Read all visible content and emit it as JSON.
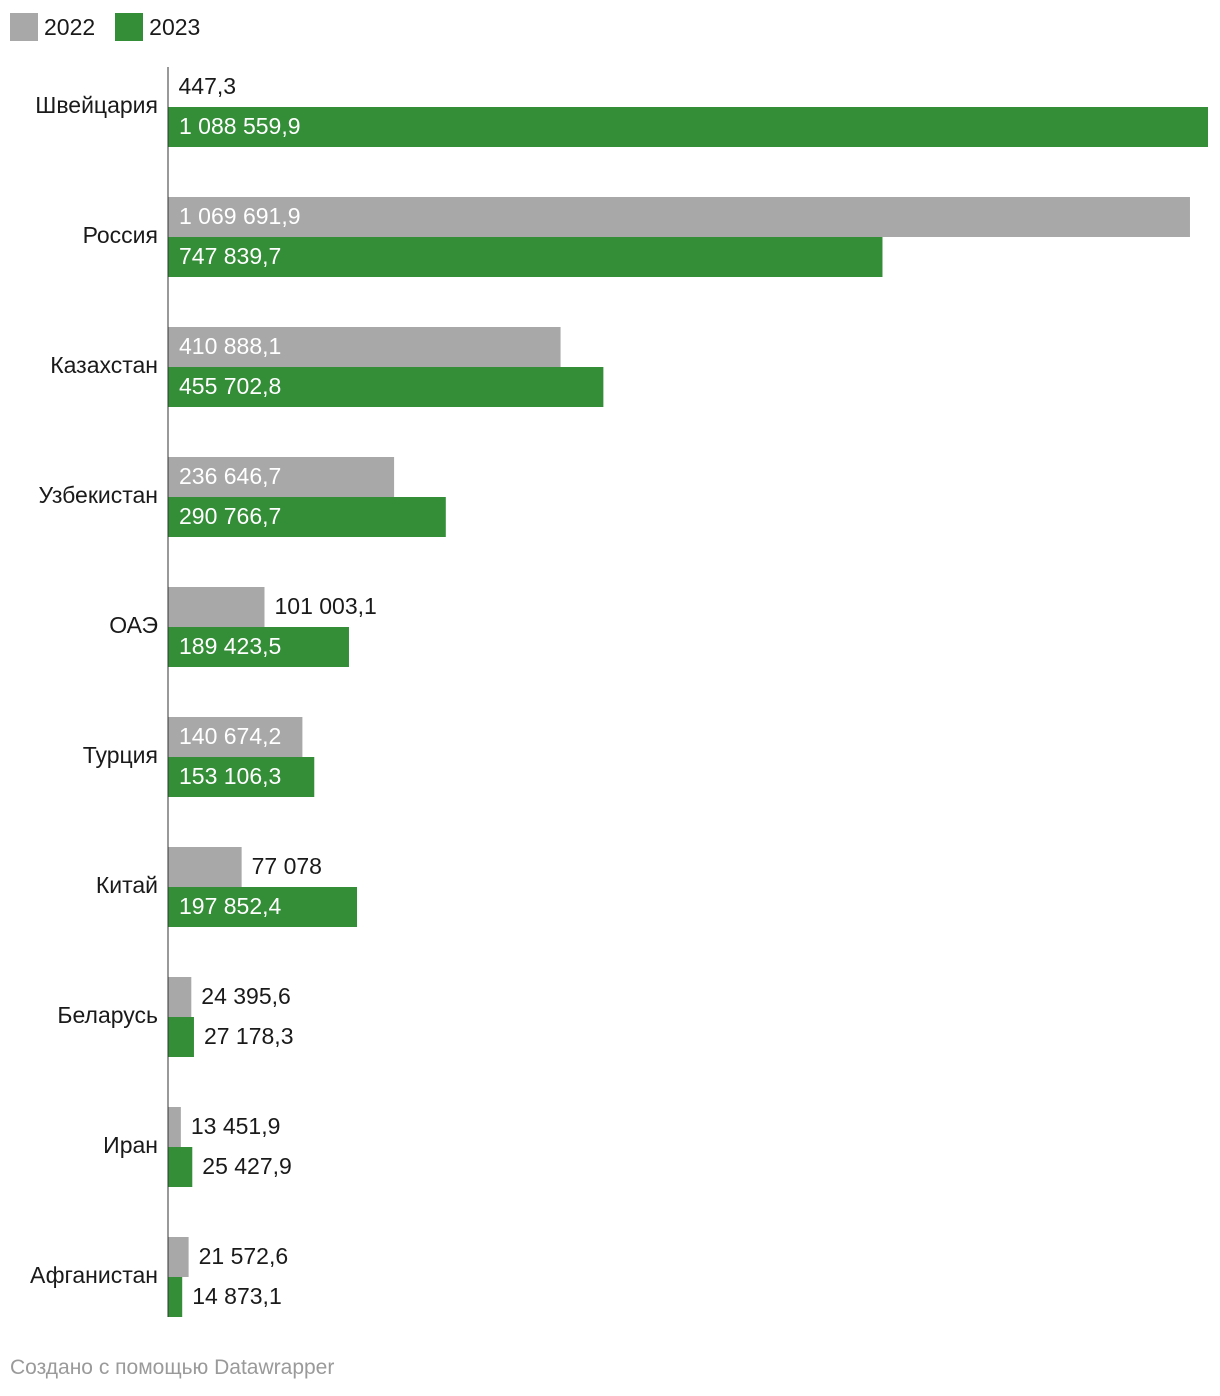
{
  "chart_data": {
    "type": "bar",
    "orientation": "horizontal",
    "categories": [
      "Швейцария",
      "Россия",
      "Казахстан",
      "Узбекистан",
      "ОАЭ",
      "Турция",
      "Китай",
      "Беларусь",
      "Иран",
      "Афганистан"
    ],
    "series": [
      {
        "name": "2022",
        "color": "#a8a8a8",
        "values": [
          447.3,
          1069691.9,
          410888.1,
          236646.7,
          101003.1,
          140674.2,
          77078,
          24395.6,
          13451.9,
          21572.6
        ],
        "labels": [
          "447,3",
          "1 069 691,9",
          "410 888,1",
          "236 646,7",
          "101 003,1",
          "140 674,2",
          "77 078",
          "24 395,6",
          "13 451,9",
          "21 572,6"
        ]
      },
      {
        "name": "2023",
        "color": "#338e37",
        "values": [
          1088559.9,
          747839.7,
          455702.8,
          290766.7,
          189423.5,
          153106.3,
          197852.4,
          27178.3,
          25427.9,
          14873.1
        ],
        "labels": [
          "1 088 559,9",
          "747 839,7",
          "455 702,8",
          "290 766,7",
          "189 423,5",
          "153 106,3",
          "197 852,4",
          "27 178,3",
          "25 427,9",
          "14 873,1"
        ]
      }
    ],
    "xlim": [
      0,
      1088559.9
    ],
    "grid": false,
    "legend": "top-left"
  },
  "legend": {
    "items": [
      {
        "label": "2022",
        "color": "#a8a8a8"
      },
      {
        "label": "2023",
        "color": "#338e37"
      }
    ]
  },
  "footer": {
    "text": "Создано с помощью Datawrapper"
  }
}
